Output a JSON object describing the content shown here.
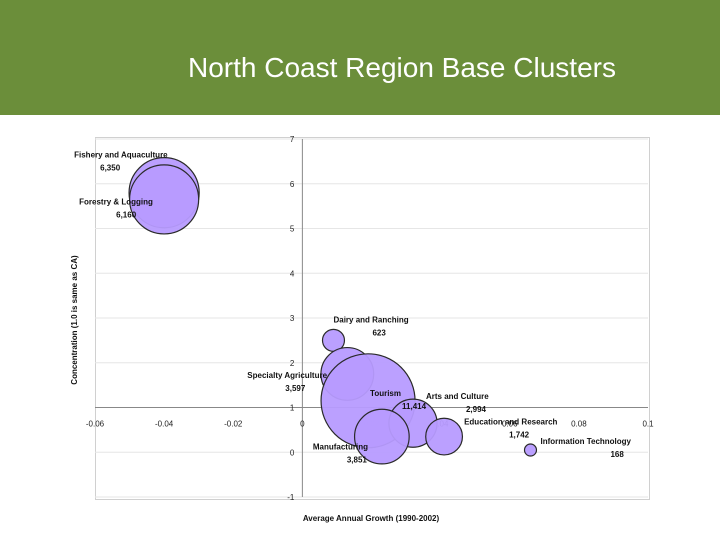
{
  "slide": {
    "title": "North Coast Region Base Clusters"
  },
  "colors": {
    "header_bg": "#6b8e3a",
    "bubble_fill": "#b79bff",
    "bubble_stroke": "#2a2a2a",
    "grid": "#e6e6e6"
  },
  "chart_data": {
    "type": "bubble",
    "xlabel": "Average Annual Growth (1990-2002)",
    "ylabel": "Concentration (1.0 is same as CA)",
    "xlim": [
      -0.06,
      0.1
    ],
    "ylim": [
      -1,
      7
    ],
    "x_ticks": [
      "-0.06",
      "-0.04",
      "-0.02",
      "0",
      "0.02",
      "0.04",
      "0.06",
      "0.08",
      "0.1"
    ],
    "y_ticks": [
      "-1",
      "0",
      "1",
      "2",
      "3",
      "4",
      "5",
      "6",
      "7"
    ],
    "grid": true,
    "points": [
      {
        "name": "Fishery and Aquaculture",
        "value": "6,350",
        "x": -0.04,
        "y": 5.8,
        "size": 6350
      },
      {
        "name": "Forestry & Logging",
        "value": "6,160",
        "x": -0.04,
        "y": 5.65,
        "size": 6160
      },
      {
        "name": "Dairy and Ranching",
        "value": "623",
        "x": 0.009,
        "y": 2.5,
        "size": 623
      },
      {
        "name": "Specialty Agriculture",
        "value": "3,597",
        "x": 0.013,
        "y": 1.75,
        "size": 3597
      },
      {
        "name": "Tourism",
        "value": "11,414",
        "x": 0.019,
        "y": 1.15,
        "size": 11414
      },
      {
        "name": "Arts and Culture",
        "value": "2,994",
        "x": 0.032,
        "y": 0.65,
        "size": 2994
      },
      {
        "name": "Manufacturing",
        "value": "3,851",
        "x": 0.023,
        "y": 0.35,
        "size": 3851
      },
      {
        "name": "Education and Research",
        "value": "1,742",
        "x": 0.041,
        "y": 0.35,
        "size": 1742
      },
      {
        "name": "Information Technology",
        "value": "168",
        "x": 0.066,
        "y": 0.05,
        "size": 168
      }
    ]
  }
}
